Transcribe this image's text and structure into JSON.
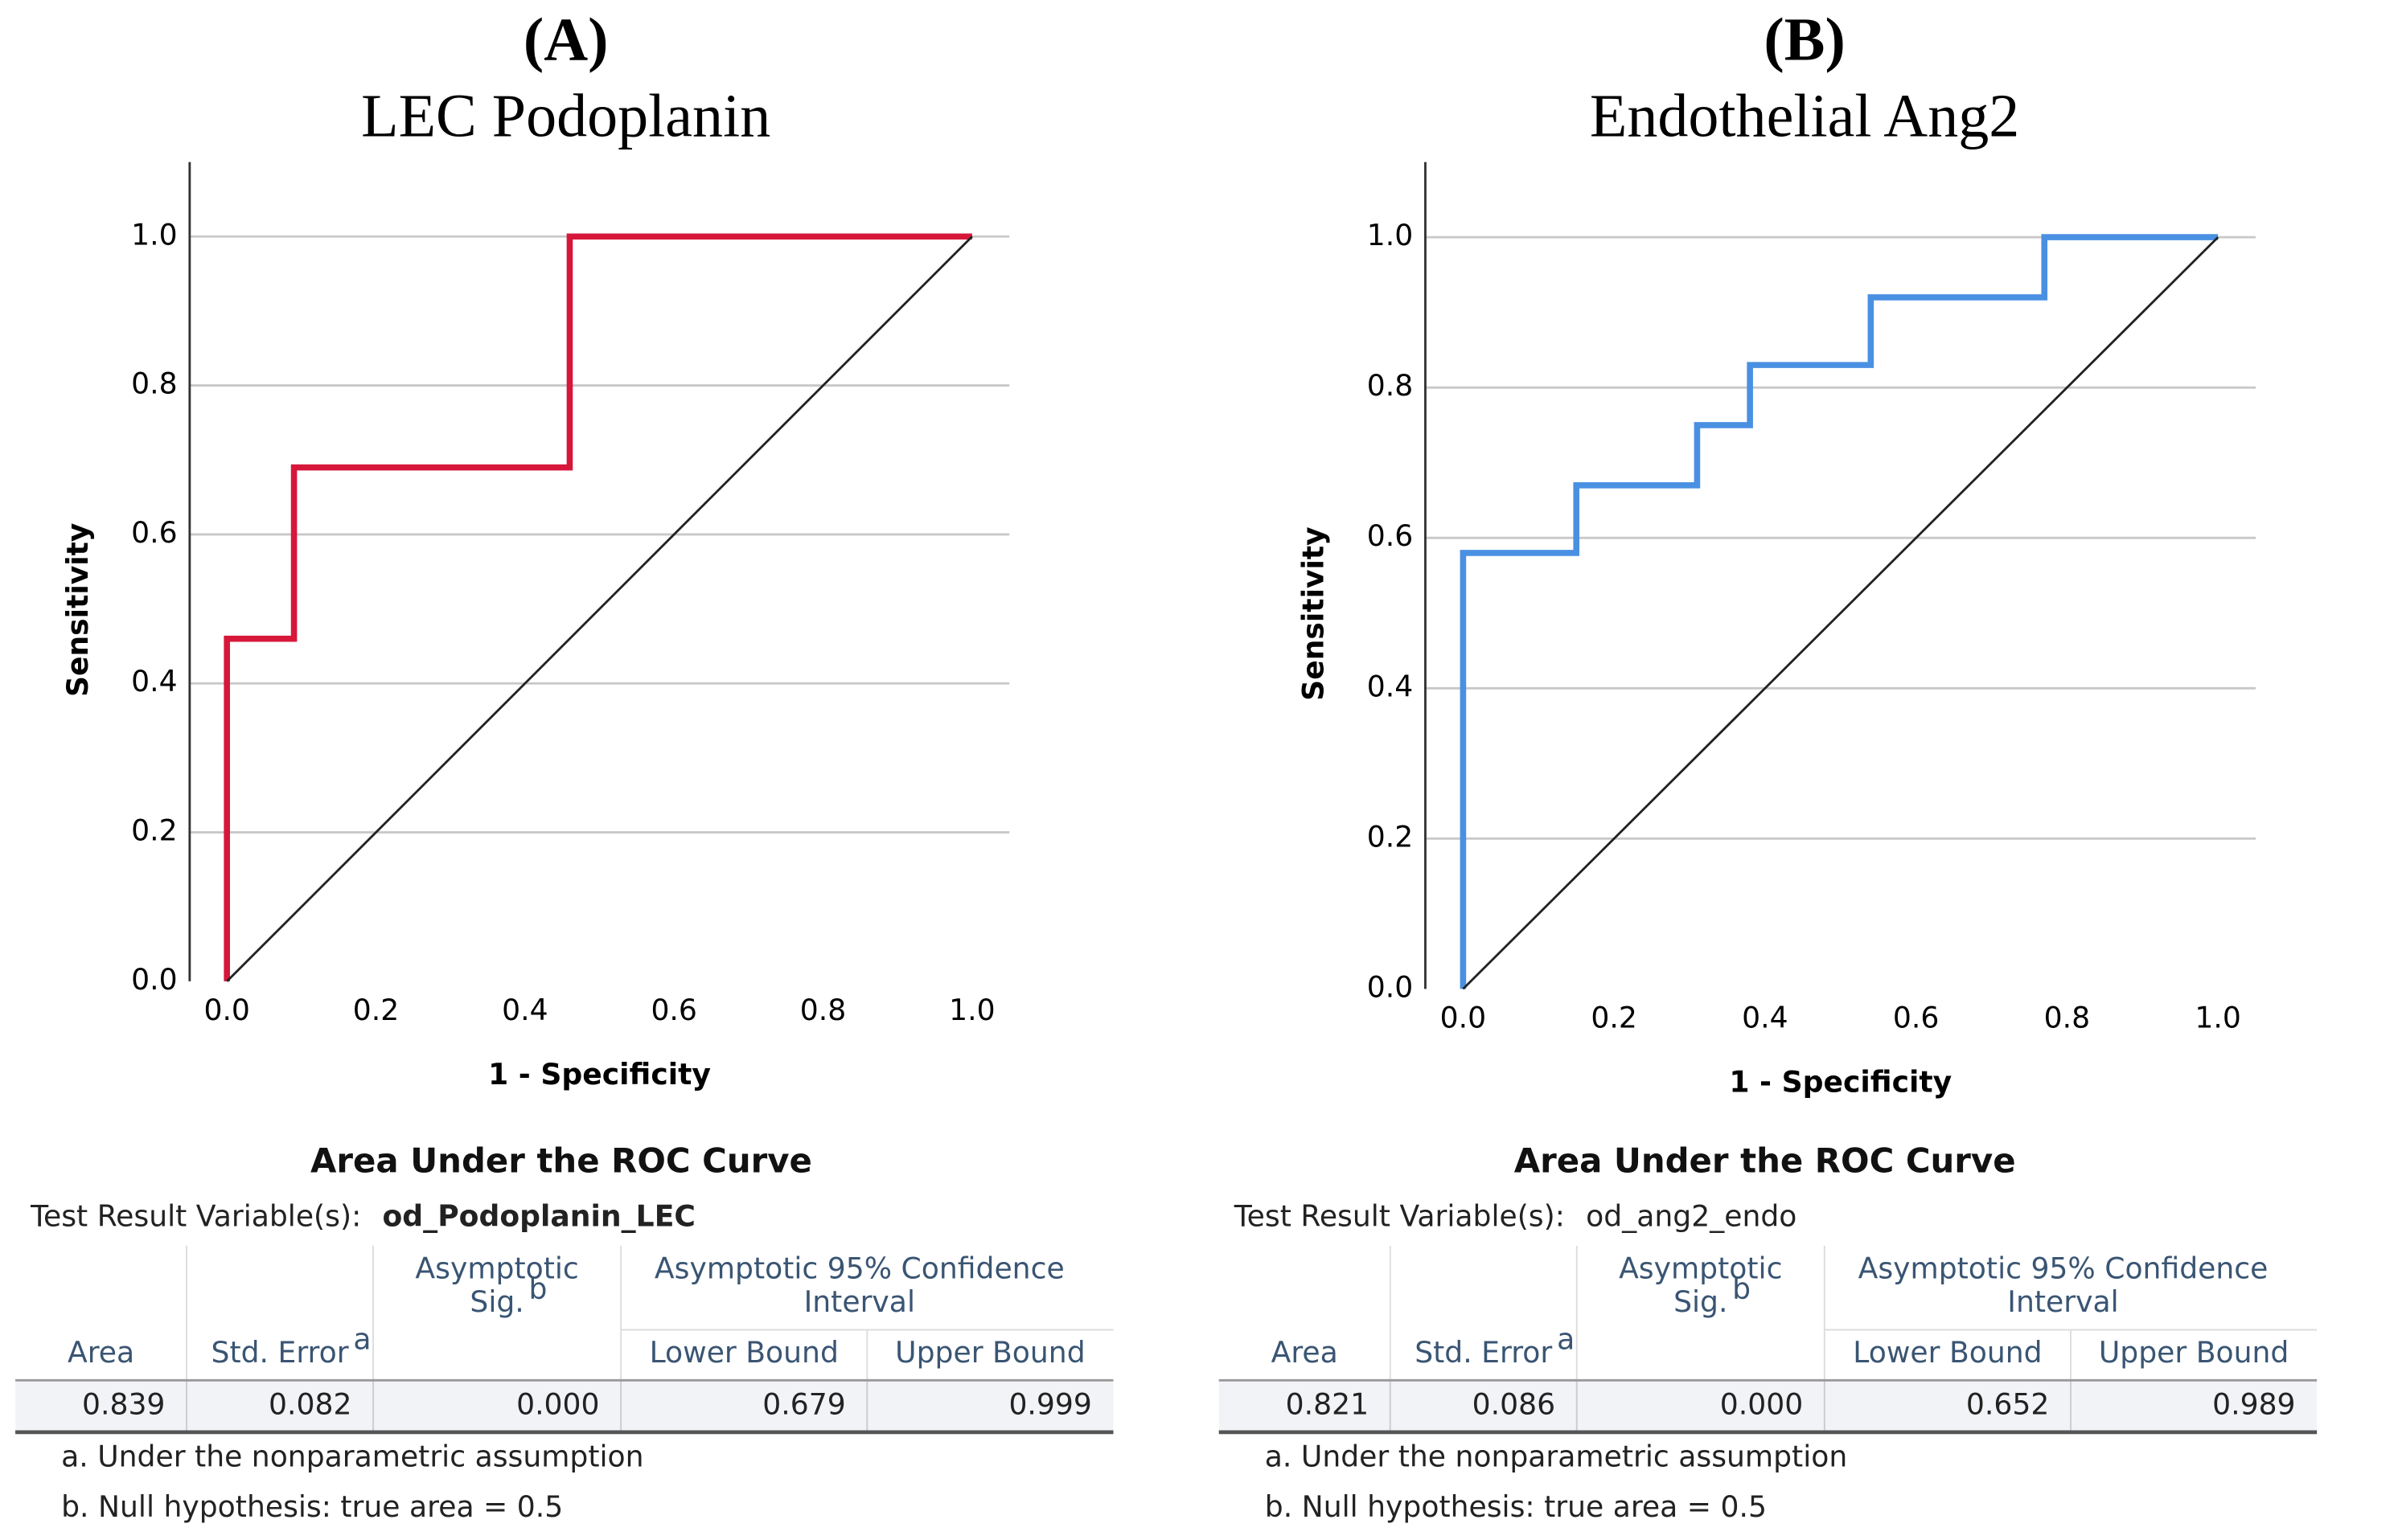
{
  "chart_data": [
    {
      "type": "line",
      "label": "(A)",
      "title": "LEC Podoplanin",
      "xlabel": "1 - Specificity",
      "ylabel": "Sensitivity",
      "xlim": [
        -0.05,
        1.05
      ],
      "ylim": [
        0,
        1.1
      ],
      "xticks": [
        {
          "value": 0,
          "label": "0.0"
        },
        0.2,
        0.4,
        0.6,
        0.8,
        {
          "value": 1,
          "label": "1.0"
        }
      ],
      "yticks": [
        {
          "value": 0,
          "label": "0.0"
        },
        0.2,
        0.4,
        0.6,
        0.8,
        {
          "value": 1,
          "label": "1.0"
        }
      ],
      "grid": true,
      "series": [
        {
          "color": "#d6173a",
          "x": [
            0,
            0,
            0.09,
            0.09,
            0.46,
            0.46,
            1
          ],
          "values": [
            0,
            0.46,
            0.46,
            0.69,
            0.69,
            1,
            1
          ]
        },
        {
          "color": "#222222",
          "x": [
            0,
            1
          ],
          "values": [
            0,
            1
          ]
        }
      ]
    },
    {
      "type": "line",
      "label": "(B)",
      "title": "Endothelial Ang2",
      "xlabel": "1 - Specificity",
      "ylabel": "Sensitivity",
      "xlim": [
        -0.05,
        1.05
      ],
      "ylim": [
        0,
        1.1
      ],
      "xticks": [
        {
          "value": 0,
          "label": "0.0"
        },
        0.2,
        0.4,
        0.6,
        0.8,
        {
          "value": 1,
          "label": "1.0"
        }
      ],
      "yticks": [
        {
          "value": 0,
          "label": "0.0"
        },
        0.2,
        0.4,
        0.6,
        0.8,
        {
          "value": 1,
          "label": "1.0"
        }
      ],
      "grid": true,
      "series": [
        {
          "color": "#4a90e2",
          "x": [
            0,
            0,
            0.15,
            0.15,
            0.31,
            0.31,
            0.38,
            0.38,
            0.54,
            0.54,
            0.77,
            0.77,
            1
          ],
          "values": [
            0,
            0.58,
            0.58,
            0.67,
            0.67,
            0.75,
            0.75,
            0.83,
            0.83,
            0.92,
            0.92,
            1,
            1
          ]
        },
        {
          "color": "#222222",
          "x": [
            0,
            1
          ],
          "values": [
            0,
            1
          ]
        }
      ]
    }
  ],
  "tables": [
    {
      "title": "Area Under the ROC Curve",
      "variable_label": "Test Result Variable(s):",
      "variable": "od_Podoplanin_LEC",
      "group_header": [
        "Asymptotic 95% Confidence",
        "Interval"
      ],
      "headers": [
        {
          "lines": [
            "Area"
          ]
        },
        {
          "lines": [
            "Std. Error"
          ],
          "note": "a"
        },
        {
          "lines": [
            "Asymptotic",
            "Sig."
          ],
          "note": "b"
        },
        {
          "lines": [
            "Lower Bound"
          ]
        },
        {
          "lines": [
            "Upper Bound"
          ]
        }
      ],
      "row": [
        "0.839",
        "0.082",
        "0.000",
        "0.679",
        "0.999"
      ],
      "footnotes": [
        "a. Under the nonparametric assumption",
        "b. Null hypothesis: true area = 0.5"
      ]
    },
    {
      "title": "Area Under the ROC Curve",
      "variable_label": "Test Result Variable(s):",
      "variable": "od_ang2_endo",
      "group_header": [
        "Asymptotic 95% Confidence",
        "Interval"
      ],
      "headers": [
        {
          "lines": [
            "Area"
          ]
        },
        {
          "lines": [
            "Std. Error"
          ],
          "note": "a"
        },
        {
          "lines": [
            "Asymptotic",
            "Sig."
          ],
          "note": "b"
        },
        {
          "lines": [
            "Lower Bound"
          ]
        },
        {
          "lines": [
            "Upper Bound"
          ]
        }
      ],
      "row": [
        "0.821",
        "0.086",
        "0.000",
        "0.652",
        "0.989"
      ],
      "footnotes": [
        "a. Under the nonparametric assumption",
        "b. Null hypothesis: true area = 0.5"
      ]
    }
  ]
}
